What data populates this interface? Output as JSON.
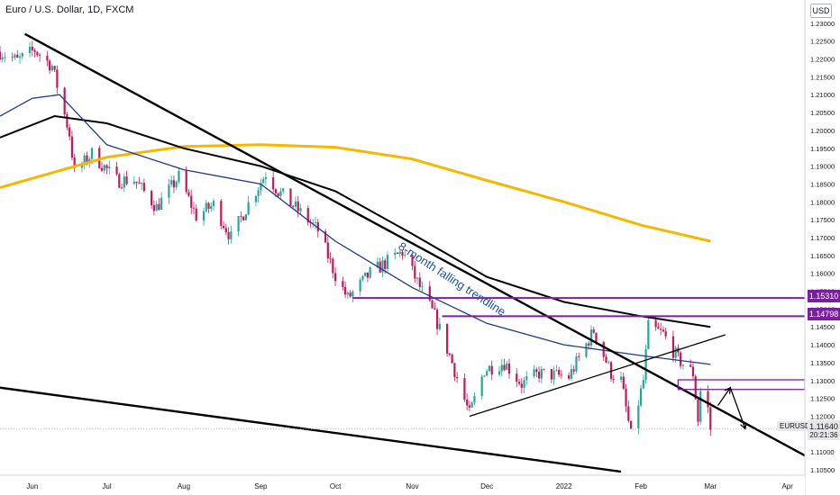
{
  "header": {
    "title": "Euro / U.S. Dollar, 1D, FXCM",
    "currency_badge": "USD"
  },
  "labels": {
    "symbol_tag": "EURUSD",
    "last_price": "1.11640",
    "countdown": "20:21:36",
    "level_1": "1.15310",
    "level_2": "1.14798",
    "trendline_annotation": "8-month falling trendline"
  },
  "colors": {
    "up_candle": "#26a69a",
    "down_candle": "#c2185b",
    "sma_blue": "#1e3a8a",
    "sma_black": "#000000",
    "sma_yellow": "#f5b700",
    "level_purple": "#7b1fa2",
    "annotation_blue": "#1e4fa3"
  },
  "chart_data": {
    "type": "candlestick",
    "title": "Euro / U.S. Dollar, 1D, FXCM",
    "xlabel": "",
    "ylabel": "",
    "x_ticks": [
      "Jun",
      "Jul",
      "Aug",
      "Sep",
      "Oct",
      "Nov",
      "Dec",
      "2022",
      "Feb",
      "Mar",
      "Apr"
    ],
    "y_ticks": [
      "1.23000",
      "1.22500",
      "1.22000",
      "1.21500",
      "1.21000",
      "1.20500",
      "1.20000",
      "1.19500",
      "1.19000",
      "1.18500",
      "1.18000",
      "1.17500",
      "1.17000",
      "1.16500",
      "1.16000",
      "1.15500",
      "1.15000",
      "1.14500",
      "1.14000",
      "1.13500",
      "1.13000",
      "1.12500",
      "1.12000",
      "1.11500",
      "1.11000",
      "1.10500"
    ],
    "ylim": [
      1.1035,
      1.2365
    ],
    "xlim": [
      "2021-05-19",
      "2022-04-08"
    ],
    "grid": false,
    "close_path": [
      [
        "2021-05-19",
        1.222
      ],
      [
        "2021-05-26",
        1.2195
      ],
      [
        "2021-06-02",
        1.2225
      ],
      [
        "2021-06-09",
        1.218
      ],
      [
        "2021-06-16",
        1.199
      ],
      [
        "2021-06-18",
        1.188
      ],
      [
        "2021-06-25",
        1.1935
      ],
      [
        "2021-07-05",
        1.186
      ],
      [
        "2021-07-12",
        1.1862
      ],
      [
        "2021-07-21",
        1.1785
      ],
      [
        "2021-07-30",
        1.187
      ],
      [
        "2021-08-06",
        1.176
      ],
      [
        "2021-08-13",
        1.1792
      ],
      [
        "2021-08-20",
        1.17
      ],
      [
        "2021-08-27",
        1.1795
      ],
      [
        "2021-09-03",
        1.188
      ],
      [
        "2021-09-08",
        1.183
      ],
      [
        "2021-09-17",
        1.177
      ],
      [
        "2021-09-24",
        1.172
      ],
      [
        "2021-10-01",
        1.1595
      ],
      [
        "2021-10-06",
        1.153
      ],
      [
        "2021-10-15",
        1.16
      ],
      [
        "2021-10-28",
        1.166
      ],
      [
        "2021-11-03",
        1.1575
      ],
      [
        "2021-11-10",
        1.148
      ],
      [
        "2021-11-16",
        1.137
      ],
      [
        "2021-11-24",
        1.1205
      ],
      [
        "2021-11-30",
        1.133
      ],
      [
        "2021-12-08",
        1.135
      ],
      [
        "2021-12-15",
        1.129
      ],
      [
        "2021-12-22",
        1.132
      ],
      [
        "2022-01-03",
        1.131
      ],
      [
        "2022-01-13",
        1.144
      ],
      [
        "2022-01-20",
        1.132
      ],
      [
        "2022-01-24",
        1.13
      ],
      [
        "2022-01-28",
        1.1145
      ],
      [
        "2022-02-02",
        1.13
      ],
      [
        "2022-02-04",
        1.145
      ],
      [
        "2022-02-10",
        1.143
      ],
      [
        "2022-02-16",
        1.136
      ],
      [
        "2022-02-22",
        1.132
      ],
      [
        "2022-02-24",
        1.119
      ],
      [
        "2022-02-25",
        1.127
      ],
      [
        "2022-02-28",
        1.122
      ],
      [
        "2022-03-01",
        1.1164
      ]
    ],
    "series": [
      {
        "name": "",
        "color": "sma_yellow",
        "points": [
          [
            "2021-05-19",
            1.184
          ],
          [
            "2021-07-01",
            1.1925
          ],
          [
            "2021-08-01",
            1.1955
          ],
          [
            "2021-09-01",
            1.196
          ],
          [
            "2021-10-01",
            1.1953
          ],
          [
            "2021-11-01",
            1.192
          ],
          [
            "2021-12-01",
            1.186
          ],
          [
            "2022-01-01",
            1.18
          ],
          [
            "2022-02-01",
            1.1735
          ],
          [
            "2022-03-01",
            1.169
          ]
        ]
      },
      {
        "name": "",
        "color": "sma_black",
        "points": [
          [
            "2021-05-19",
            1.198
          ],
          [
            "2021-06-10",
            1.204
          ],
          [
            "2021-07-01",
            1.202
          ],
          [
            "2021-08-01",
            1.195
          ],
          [
            "2021-09-01",
            1.19
          ],
          [
            "2021-10-01",
            1.183
          ],
          [
            "2021-11-01",
            1.171
          ],
          [
            "2021-12-01",
            1.159
          ],
          [
            "2022-01-01",
            1.152
          ],
          [
            "2022-02-01",
            1.148
          ],
          [
            "2022-03-01",
            1.145
          ]
        ]
      },
      {
        "name": "",
        "color": "sma_blue",
        "points": [
          [
            "2021-05-19",
            1.204
          ],
          [
            "2021-06-01",
            1.209
          ],
          [
            "2021-06-12",
            1.21
          ],
          [
            "2021-07-01",
            1.196
          ],
          [
            "2021-08-01",
            1.189
          ],
          [
            "2021-09-01",
            1.185
          ],
          [
            "2021-10-01",
            1.169
          ],
          [
            "2021-11-01",
            1.156
          ],
          [
            "2021-12-01",
            1.146
          ],
          [
            "2022-01-01",
            1.14
          ],
          [
            "2022-02-01",
            1.137
          ],
          [
            "2022-03-01",
            1.1345
          ]
        ]
      }
    ],
    "trendlines": [
      {
        "from": [
          "2021-05-29",
          1.227
        ],
        "to": [
          "2022-04-08",
          1.109
        ]
      },
      {
        "from": [
          "2021-05-19",
          1.128
        ],
        "to": [
          "2022-01-24",
          1.1045
        ]
      },
      {
        "from": [
          "2021-11-24",
          1.12
        ],
        "to": [
          "2022-03-07",
          1.1428
        ]
      }
    ],
    "levels": [
      {
        "price": 1.1531,
        "from": "2021-10-08",
        "label": "1.15310"
      },
      {
        "price": 1.14798,
        "from": "2021-11-13",
        "label": "1.14798"
      }
    ],
    "zone": {
      "from": "2022-02-16",
      "to": "2022-04-08",
      "top": 1.1302,
      "bottom": 1.1275
    },
    "forecast_path": [
      [
        "2022-03-04",
        1.123
      ],
      [
        "2022-03-09",
        1.128
      ],
      [
        "2022-03-15",
        1.1165
      ]
    ],
    "annotations": [
      {
        "text": "8-month falling trendline",
        "at": [
          "2021-10-26",
          1.167
        ]
      }
    ]
  }
}
